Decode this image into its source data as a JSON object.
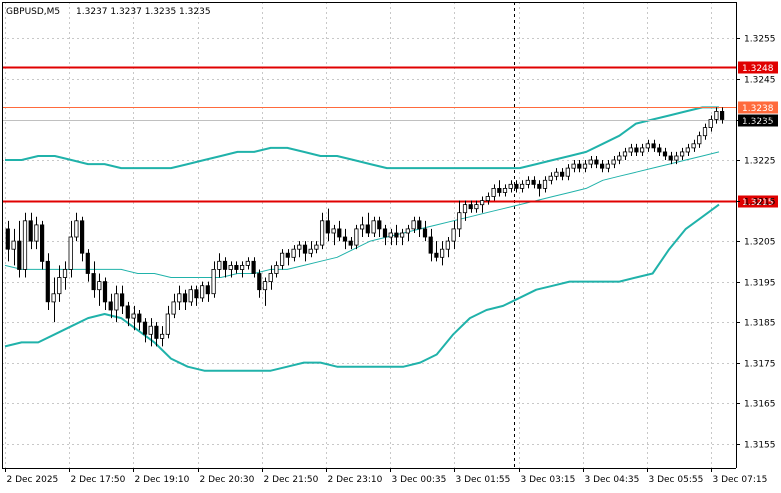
{
  "header": {
    "symbol": "GBPUSD,M5",
    "ohlc": "1.3237 1.3237 1.3235 1.3235"
  },
  "colors": {
    "band": "#20b2aa",
    "level_red": "#e00000",
    "level_orange": "#ff6a3c",
    "bid_line": "#c0c0c0",
    "candle": "#000000",
    "grid": "#c8c8c8"
  },
  "chart_data": {
    "type": "candlestick",
    "title": "",
    "xlabel": "",
    "ylabel": "",
    "ylim": [
      1.3149,
      1.3264
    ],
    "yticks": [
      1.3155,
      1.3165,
      1.3175,
      1.3185,
      1.3195,
      1.3205,
      1.3215,
      1.3225,
      1.3235,
      1.3245,
      1.3255
    ],
    "x_tick_labels": [
      "2 Dec 2025",
      "2 Dec 17:50",
      "2 Dec 19:10",
      "2 Dec 20:30",
      "2 Dec 21:50",
      "2 Dec 23:10",
      "3 Dec 00:35",
      "3 Dec 01:55",
      "3 Dec 03:15",
      "3 Dec 04:35",
      "3 Dec 05:55",
      "3 Dec 07:15"
    ],
    "grid": true,
    "session_separator_after_bar": 89,
    "horizontal_levels": [
      {
        "label": "1.3248",
        "value": 1.3248,
        "color": "#e00000"
      },
      {
        "label": "1.3238",
        "value": 1.3238,
        "color": "#ff6a3c"
      },
      {
        "label": "1.3215",
        "value": 1.3215,
        "color": "#e00000"
      }
    ],
    "current_price": {
      "label": "1.3235",
      "value": 1.3235
    },
    "candles_ohlc": [
      [
        1.3208,
        1.321,
        1.32,
        1.3203
      ],
      [
        1.3203,
        1.3208,
        1.3199,
        1.3205
      ],
      [
        1.3205,
        1.321,
        1.3196,
        1.3198
      ],
      [
        1.3198,
        1.3212,
        1.3196,
        1.321
      ],
      [
        1.321,
        1.3212,
        1.3203,
        1.3205
      ],
      [
        1.3205,
        1.3211,
        1.3203,
        1.3209
      ],
      [
        1.3209,
        1.321,
        1.3198,
        1.32
      ],
      [
        1.32,
        1.3202,
        1.3188,
        1.319
      ],
      [
        1.319,
        1.3196,
        1.3185,
        1.3192
      ],
      [
        1.3192,
        1.3199,
        1.319,
        1.3196
      ],
      [
        1.3196,
        1.32,
        1.3193,
        1.3198
      ],
      [
        1.3198,
        1.321,
        1.3196,
        1.3206
      ],
      [
        1.3206,
        1.3212,
        1.3205,
        1.321
      ],
      [
        1.321,
        1.3211,
        1.32,
        1.3202
      ],
      [
        1.3202,
        1.3203,
        1.3195,
        1.3197
      ],
      [
        1.3197,
        1.32,
        1.3191,
        1.3193
      ],
      [
        1.3193,
        1.3197,
        1.3189,
        1.3195
      ],
      [
        1.3195,
        1.3196,
        1.3188,
        1.319
      ],
      [
        1.319,
        1.3192,
        1.3186,
        1.3188
      ],
      [
        1.3188,
        1.3194,
        1.3185,
        1.3192
      ],
      [
        1.3192,
        1.3194,
        1.3187,
        1.3189
      ],
      [
        1.3189,
        1.319,
        1.3184,
        1.3186
      ],
      [
        1.3186,
        1.3189,
        1.3183,
        1.3187
      ],
      [
        1.3187,
        1.3188,
        1.3183,
        1.3185
      ],
      [
        1.3185,
        1.3186,
        1.318,
        1.3182
      ],
      [
        1.3182,
        1.3186,
        1.3179,
        1.3184
      ],
      [
        1.3184,
        1.3185,
        1.3179,
        1.3181
      ],
      [
        1.3181,
        1.3184,
        1.3179,
        1.3182
      ],
      [
        1.3182,
        1.3189,
        1.3181,
        1.3187
      ],
      [
        1.3187,
        1.3192,
        1.3186,
        1.319
      ],
      [
        1.319,
        1.3194,
        1.3188,
        1.3192
      ],
      [
        1.3192,
        1.3193,
        1.3188,
        1.319
      ],
      [
        1.319,
        1.3194,
        1.3189,
        1.3193
      ],
      [
        1.3193,
        1.3194,
        1.3189,
        1.3191
      ],
      [
        1.3191,
        1.3195,
        1.319,
        1.3194
      ],
      [
        1.3194,
        1.3195,
        1.319,
        1.3192
      ],
      [
        1.3192,
        1.32,
        1.3191,
        1.3198
      ],
      [
        1.3198,
        1.3202,
        1.3196,
        1.32
      ],
      [
        1.32,
        1.3201,
        1.3196,
        1.3198
      ],
      [
        1.3198,
        1.32,
        1.3196,
        1.3199
      ],
      [
        1.3199,
        1.32,
        1.3197,
        1.3198
      ],
      [
        1.3198,
        1.32,
        1.3196,
        1.3199
      ],
      [
        1.3199,
        1.3201,
        1.3198,
        1.32
      ],
      [
        1.32,
        1.3201,
        1.3196,
        1.3197
      ],
      [
        1.3197,
        1.3198,
        1.3191,
        1.3193
      ],
      [
        1.3193,
        1.3196,
        1.3189,
        1.3195
      ],
      [
        1.3195,
        1.3199,
        1.3193,
        1.3197
      ],
      [
        1.3197,
        1.32,
        1.3196,
        1.3199
      ],
      [
        1.3199,
        1.3203,
        1.3198,
        1.3202
      ],
      [
        1.3202,
        1.3203,
        1.3199,
        1.3201
      ],
      [
        1.3201,
        1.3204,
        1.32,
        1.3203
      ],
      [
        1.3203,
        1.3205,
        1.3201,
        1.3204
      ],
      [
        1.3204,
        1.3205,
        1.32,
        1.3202
      ],
      [
        1.3202,
        1.3205,
        1.3201,
        1.3203
      ],
      [
        1.3203,
        1.3205,
        1.3202,
        1.3204
      ],
      [
        1.3204,
        1.3212,
        1.3203,
        1.321
      ],
      [
        1.321,
        1.3213,
        1.3205,
        1.3207
      ],
      [
        1.3207,
        1.3209,
        1.3204,
        1.3208
      ],
      [
        1.3208,
        1.321,
        1.3205,
        1.3206
      ],
      [
        1.3206,
        1.3208,
        1.3203,
        1.3205
      ],
      [
        1.3205,
        1.3206,
        1.3203,
        1.3204
      ],
      [
        1.3204,
        1.3209,
        1.3203,
        1.3208
      ],
      [
        1.3208,
        1.3211,
        1.3206,
        1.3209
      ],
      [
        1.3209,
        1.3212,
        1.3206,
        1.3207
      ],
      [
        1.3207,
        1.3211,
        1.3206,
        1.321
      ],
      [
        1.321,
        1.3211,
        1.3206,
        1.3208
      ],
      [
        1.3208,
        1.3209,
        1.3204,
        1.3206
      ],
      [
        1.3206,
        1.3208,
        1.3204,
        1.3207
      ],
      [
        1.3207,
        1.3209,
        1.3204,
        1.3206
      ],
      [
        1.3206,
        1.3208,
        1.3204,
        1.3207
      ],
      [
        1.3207,
        1.3209,
        1.3205,
        1.3208
      ],
      [
        1.3208,
        1.3211,
        1.3207,
        1.321
      ],
      [
        1.321,
        1.3211,
        1.3206,
        1.3208
      ],
      [
        1.3208,
        1.321,
        1.3205,
        1.3206
      ],
      [
        1.3206,
        1.3208,
        1.32,
        1.3202
      ],
      [
        1.3202,
        1.3205,
        1.32,
        1.3201
      ],
      [
        1.3201,
        1.3205,
        1.3199,
        1.3203
      ],
      [
        1.3203,
        1.3206,
        1.3201,
        1.3205
      ],
      [
        1.3205,
        1.321,
        1.3203,
        1.3208
      ],
      [
        1.3208,
        1.3215,
        1.3206,
        1.3212
      ],
      [
        1.3212,
        1.3215,
        1.321,
        1.3214
      ],
      [
        1.3214,
        1.3215,
        1.3212,
        1.3213
      ],
      [
        1.3213,
        1.3215,
        1.3212,
        1.3214
      ],
      [
        1.3214,
        1.3216,
        1.3212,
        1.3215
      ],
      [
        1.3215,
        1.3217,
        1.3214,
        1.3216
      ],
      [
        1.3216,
        1.3219,
        1.3215,
        1.3218
      ],
      [
        1.3218,
        1.322,
        1.3216,
        1.3217
      ],
      [
        1.3217,
        1.3219,
        1.3216,
        1.3218
      ],
      [
        1.3218,
        1.322,
        1.3217,
        1.3219
      ],
      [
        1.3219,
        1.322,
        1.3217,
        1.3218
      ],
      [
        1.3218,
        1.322,
        1.3217,
        1.3219
      ],
      [
        1.3219,
        1.3221,
        1.3218,
        1.322
      ],
      [
        1.322,
        1.3221,
        1.3218,
        1.3219
      ],
      [
        1.3219,
        1.322,
        1.3216,
        1.3218
      ],
      [
        1.3218,
        1.3221,
        1.3217,
        1.322
      ],
      [
        1.322,
        1.3222,
        1.3219,
        1.3221
      ],
      [
        1.3221,
        1.3223,
        1.322,
        1.3222
      ],
      [
        1.3222,
        1.3223,
        1.322,
        1.3221
      ],
      [
        1.3221,
        1.3224,
        1.322,
        1.3223
      ],
      [
        1.3223,
        1.3225,
        1.3222,
        1.3224
      ],
      [
        1.3224,
        1.3225,
        1.3222,
        1.3223
      ],
      [
        1.3223,
        1.3225,
        1.3222,
        1.3224
      ],
      [
        1.3224,
        1.3226,
        1.3223,
        1.3225
      ],
      [
        1.3225,
        1.3226,
        1.3223,
        1.3224
      ],
      [
        1.3224,
        1.3225,
        1.3222,
        1.3223
      ],
      [
        1.3223,
        1.3225,
        1.3222,
        1.3224
      ],
      [
        1.3224,
        1.3226,
        1.3223,
        1.3225
      ],
      [
        1.3225,
        1.3227,
        1.3224,
        1.3226
      ],
      [
        1.3226,
        1.3228,
        1.3225,
        1.3227
      ],
      [
        1.3227,
        1.3229,
        1.3226,
        1.3228
      ],
      [
        1.3228,
        1.3229,
        1.3226,
        1.3227
      ],
      [
        1.3227,
        1.3229,
        1.3226,
        1.3228
      ],
      [
        1.3228,
        1.323,
        1.3227,
        1.3229
      ],
      [
        1.3229,
        1.323,
        1.3227,
        1.3228
      ],
      [
        1.3228,
        1.3229,
        1.3226,
        1.3227
      ],
      [
        1.3227,
        1.3228,
        1.3225,
        1.3226
      ],
      [
        1.3226,
        1.3227,
        1.3224,
        1.3225
      ],
      [
        1.3225,
        1.3227,
        1.3224,
        1.3226
      ],
      [
        1.3226,
        1.3228,
        1.3225,
        1.3227
      ],
      [
        1.3227,
        1.3229,
        1.3226,
        1.3228
      ],
      [
        1.3228,
        1.323,
        1.3227,
        1.3229
      ],
      [
        1.3229,
        1.3232,
        1.3228,
        1.3231
      ],
      [
        1.3231,
        1.3234,
        1.323,
        1.3233
      ],
      [
        1.3233,
        1.3236,
        1.3232,
        1.3235
      ],
      [
        1.3235,
        1.3238,
        1.3234,
        1.3237
      ],
      [
        1.3237,
        1.3238,
        1.3234,
        1.3235
      ]
    ],
    "series": [
      {
        "type": "upper_band",
        "values": [
          1.3225,
          1.3225,
          1.3226,
          1.3226,
          1.3225,
          1.3224,
          1.3224,
          1.3223,
          1.3223,
          1.3223,
          1.3223,
          1.3224,
          1.3225,
          1.3226,
          1.3227,
          1.3227,
          1.3228,
          1.3228,
          1.3227,
          1.3226,
          1.3226,
          1.3225,
          1.3224,
          1.3223,
          1.3223,
          1.3223,
          1.3223,
          1.3223,
          1.3223,
          1.3223,
          1.3223,
          1.3223,
          1.3224,
          1.3225,
          1.3226,
          1.3227,
          1.3229,
          1.3231,
          1.3234,
          1.3235,
          1.3236,
          1.3237,
          1.3238,
          1.3238
        ]
      },
      {
        "type": "middle_band",
        "values": [
          1.3199,
          1.3198,
          1.3198,
          1.3198,
          1.3198,
          1.3198,
          1.3198,
          1.3198,
          1.3197,
          1.3197,
          1.3196,
          1.3196,
          1.3196,
          1.3196,
          1.3197,
          1.3197,
          1.3198,
          1.3198,
          1.3199,
          1.32,
          1.3201,
          1.3203,
          1.3205,
          1.3206,
          1.3207,
          1.3208,
          1.3209,
          1.321,
          1.3211,
          1.3212,
          1.3213,
          1.3214,
          1.3215,
          1.3216,
          1.3217,
          1.3218,
          1.322,
          1.3221,
          1.3222,
          1.3223,
          1.3224,
          1.3225,
          1.3226,
          1.3227
        ]
      },
      {
        "type": "lower_band",
        "values": [
          1.3179,
          1.318,
          1.318,
          1.3182,
          1.3184,
          1.3186,
          1.3187,
          1.3186,
          1.3183,
          1.318,
          1.3176,
          1.3174,
          1.3173,
          1.3173,
          1.3173,
          1.3173,
          1.3173,
          1.3174,
          1.3175,
          1.3175,
          1.3174,
          1.3174,
          1.3174,
          1.3174,
          1.3174,
          1.3175,
          1.3177,
          1.3182,
          1.3186,
          1.3188,
          1.3189,
          1.3191,
          1.3193,
          1.3194,
          1.3195,
          1.3195,
          1.3195,
          1.3195,
          1.3196,
          1.3197,
          1.3203,
          1.3208,
          1.3211,
          1.3214
        ]
      }
    ]
  }
}
